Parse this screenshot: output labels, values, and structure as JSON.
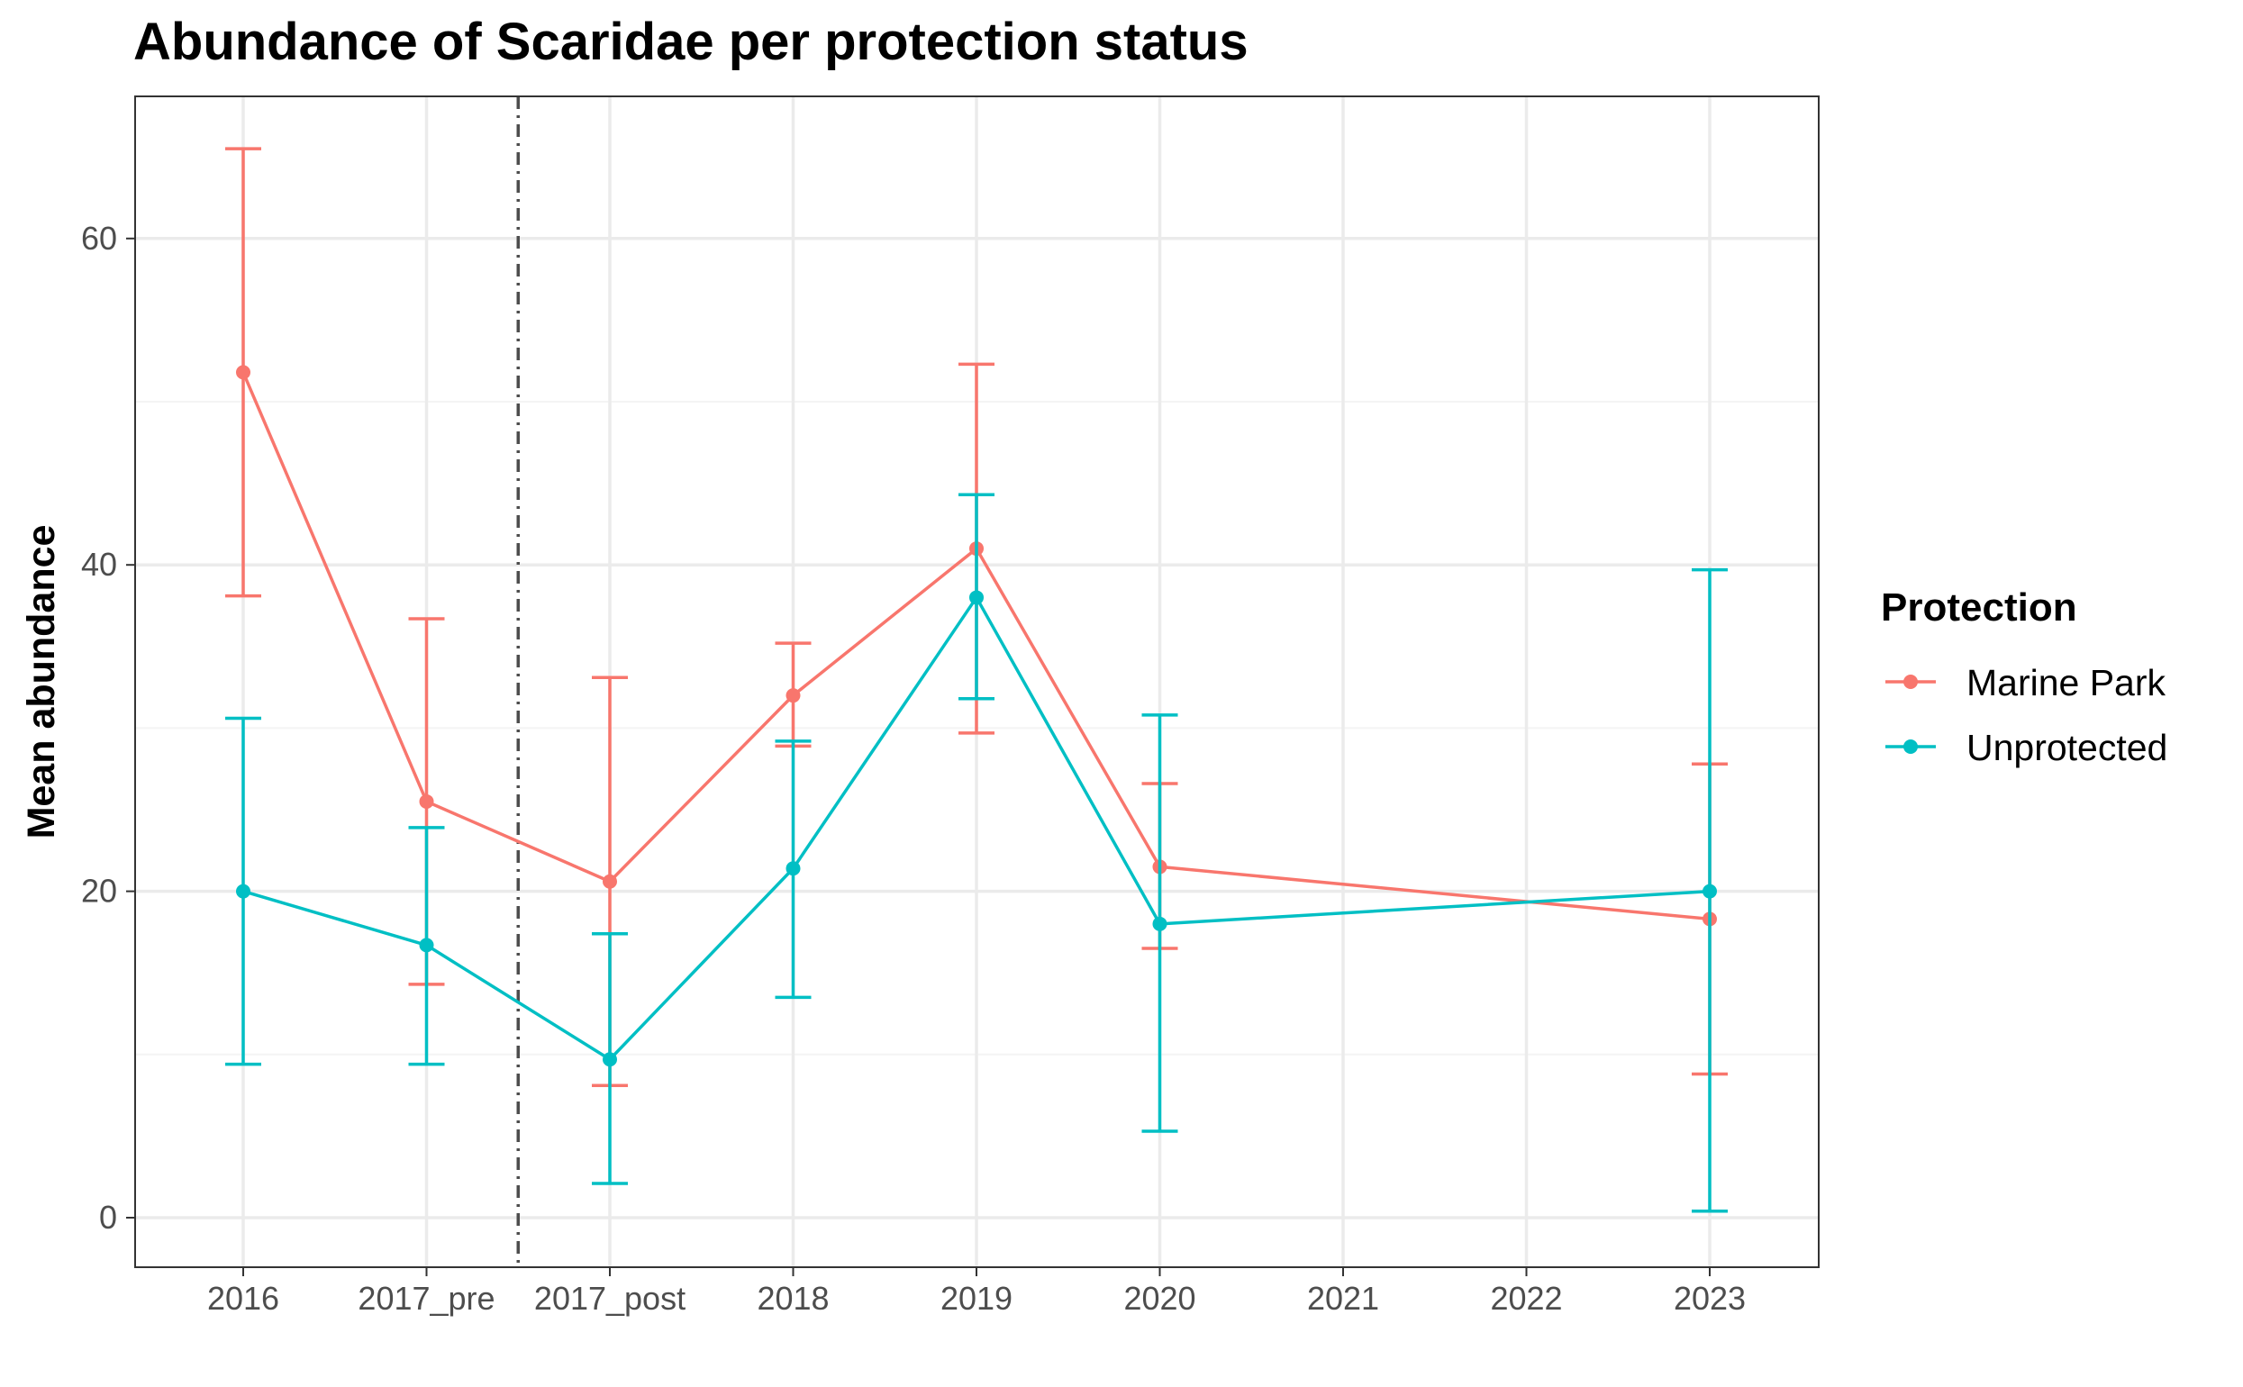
{
  "chart_data": {
    "type": "line",
    "title": "Abundance of Scaridae per protection status",
    "xlabel": "",
    "ylabel": "Mean abundance",
    "categories": [
      "2016",
      "2017_pre",
      "2017_post",
      "2018",
      "2019",
      "2020",
      "2021",
      "2022",
      "2023"
    ],
    "ylim": [
      -2.8,
      68.8
    ],
    "yticks": [
      0,
      20,
      40,
      60
    ],
    "grid": true,
    "legend": {
      "title": "Protection",
      "position": "right"
    },
    "vline": {
      "between": [
        "2017_pre",
        "2017_post"
      ],
      "style": "dashdot",
      "color": "#4d4d4d"
    },
    "series": [
      {
        "name": "Marine Park",
        "color": "#F8766D",
        "points": [
          {
            "x": "2016",
            "y": 51.8,
            "ymin": 38.1,
            "ymax": 65.5
          },
          {
            "x": "2017_pre",
            "y": 25.5,
            "ymin": 14.3,
            "ymax": 36.7
          },
          {
            "x": "2017_post",
            "y": 20.6,
            "ymin": 8.1,
            "ymax": 33.1
          },
          {
            "x": "2018",
            "y": 32.0,
            "ymin": 28.9,
            "ymax": 35.2
          },
          {
            "x": "2019",
            "y": 41.0,
            "ymin": 29.7,
            "ymax": 52.3
          },
          {
            "x": "2020",
            "y": 21.5,
            "ymin": 16.5,
            "ymax": 26.6
          },
          {
            "x": "2023",
            "y": 18.3,
            "ymin": 8.8,
            "ymax": 27.8
          }
        ]
      },
      {
        "name": "Unprotected",
        "color": "#00BFC4",
        "points": [
          {
            "x": "2016",
            "y": 20.0,
            "ymin": 9.4,
            "ymax": 30.6
          },
          {
            "x": "2017_pre",
            "y": 16.7,
            "ymin": 9.4,
            "ymax": 23.9
          },
          {
            "x": "2017_post",
            "y": 9.7,
            "ymin": 2.1,
            "ymax": 17.4
          },
          {
            "x": "2018",
            "y": 21.4,
            "ymin": 13.5,
            "ymax": 29.2
          },
          {
            "x": "2019",
            "y": 38.0,
            "ymin": 31.8,
            "ymax": 44.3
          },
          {
            "x": "2020",
            "y": 18.0,
            "ymin": 5.3,
            "ymax": 30.8
          },
          {
            "x": "2023",
            "y": 20.0,
            "ymin": 0.4,
            "ymax": 39.7
          }
        ]
      }
    ]
  }
}
